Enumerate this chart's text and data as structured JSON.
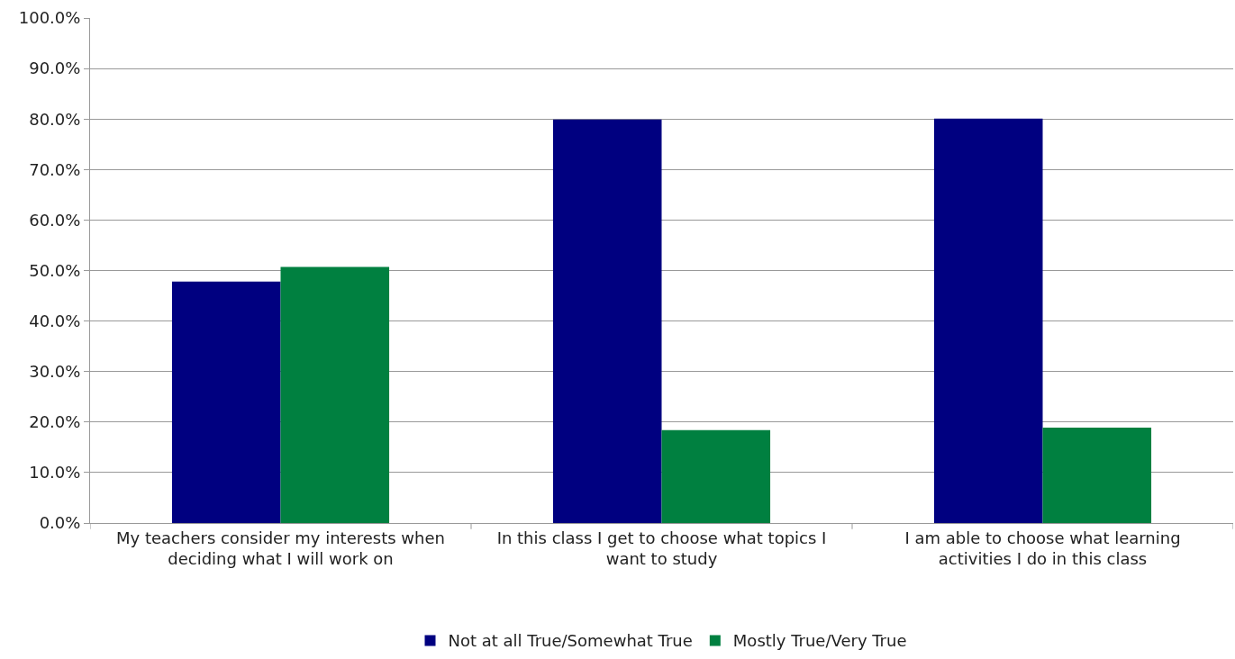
{
  "chart_data": {
    "type": "bar",
    "categories": [
      "My teachers consider my interests when deciding what I will work on",
      "In this class I get to choose what topics I want to study",
      "I am able to choose what learning activities I do in this class"
    ],
    "series": [
      {
        "name": "Not at all True/Somewhat True",
        "color": "#000080",
        "values": [
          47.8,
          79.9,
          80.1
        ]
      },
      {
        "name": "Mostly True/Very True",
        "color": "#008040",
        "values": [
          50.7,
          18.4,
          18.9
        ]
      }
    ],
    "ylim": [
      0,
      100
    ],
    "yticks": [
      {
        "value": 0,
        "label": "0.0%"
      },
      {
        "value": 10,
        "label": "10.0%"
      },
      {
        "value": 20,
        "label": "20.0%"
      },
      {
        "value": 30,
        "label": "30.0%"
      },
      {
        "value": 40,
        "label": "40.0%"
      },
      {
        "value": 50,
        "label": "50.0%"
      },
      {
        "value": 60,
        "label": "60.0%"
      },
      {
        "value": 70,
        "label": "70.0%"
      },
      {
        "value": 80,
        "label": "80.0%"
      },
      {
        "value": 90,
        "label": "90.0%"
      },
      {
        "value": 100,
        "label": "100.0%"
      }
    ],
    "grid": "y",
    "legend": "bottom"
  }
}
